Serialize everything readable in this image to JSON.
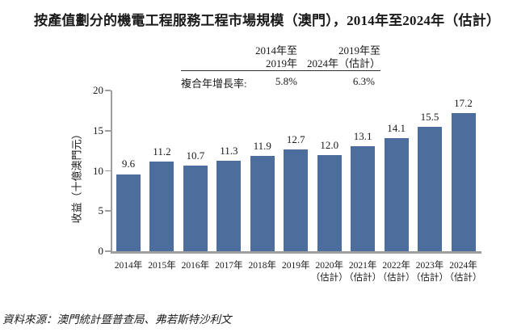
{
  "title": "按產值劃分的機電工程服務工程市場規模（澳門），2014年至2024年（估計）",
  "cagr_table": {
    "col1_header_line1": "2014年至",
    "col1_header_line2": "2019年",
    "col2_header_line1": "2019年至",
    "col2_header_line2": "2024年（估計）",
    "row_label": "複合年增長率:",
    "col1_value": "5.8%",
    "col2_value": "6.3%"
  },
  "chart_data": {
    "type": "bar",
    "title": "按產值劃分的機電工程服務工程市場規模（澳門），2014年至2024年（估計）",
    "xlabel": "",
    "ylabel": "收益（十億澳門元）",
    "ylim": [
      0,
      20
    ],
    "yticks": [
      0,
      5,
      10,
      15,
      20
    ],
    "grid": false,
    "legend": "none",
    "bar_color": "#4d6d9d",
    "axis_color": "#9e9e9e",
    "categories": [
      "2014年",
      "2015年",
      "2016年",
      "2017年",
      "2018年",
      "2019年",
      "2020年",
      "2021年",
      "2022年",
      "2023年",
      "2024年"
    ],
    "sublabels": [
      "",
      "",
      "",
      "",
      "",
      "",
      "（估計）",
      "（估計）",
      "（估計）",
      "（估計）",
      "（估計）"
    ],
    "values": [
      9.6,
      11.2,
      10.7,
      11.3,
      11.9,
      12.7,
      12.0,
      13.1,
      14.1,
      15.5,
      17.2
    ]
  },
  "source": "資料來源：澳門統計暨普查局、弗若斯特沙利文"
}
